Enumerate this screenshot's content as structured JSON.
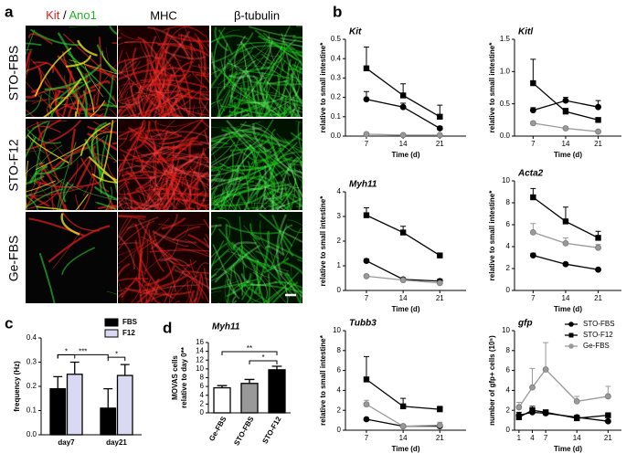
{
  "panel_letters": [
    "a",
    "b",
    "c",
    "d"
  ],
  "images": {
    "column_labels": [
      [
        "Kit",
        "/",
        "Ano1"
      ],
      [
        "MHC"
      ],
      [
        "β-tubulin"
      ]
    ],
    "row_labels": [
      "STO-FBS",
      "STO-F12",
      "Ge-FBS"
    ]
  },
  "chart_data": [
    {
      "type": "line",
      "title": "Kit",
      "ylabel": "relative to small intestine*",
      "xlabel": "Time (d)",
      "x": [
        7,
        14,
        21
      ],
      "xlim": [
        3,
        26
      ],
      "xticks": [
        7,
        14,
        21
      ],
      "ylim": [
        0,
        0.5
      ],
      "yticks": [
        {
          "value": 0,
          "label": "0.0"
        },
        {
          "value": 0.1,
          "label": "0.1"
        },
        {
          "value": 0.2,
          "label": "0.2"
        },
        {
          "value": 0.3,
          "label": "0.3"
        },
        {
          "value": 0.4,
          "label": "0.4"
        },
        {
          "value": 0.5,
          "label": "0.5"
        }
      ],
      "series": [
        {
          "color": "#000000",
          "marker": "circle",
          "values": [
            0.19,
            0.15,
            0.04
          ],
          "errors": [
            0.04,
            0.02,
            0.01
          ]
        },
        {
          "color": "#000000",
          "marker": "square",
          "values": [
            0.35,
            0.21,
            0.1
          ],
          "errors": [
            0.11,
            0.06,
            0.06
          ]
        },
        {
          "color": "#999999",
          "marker": "circle",
          "values": [
            0.01,
            0.005,
            0.005
          ],
          "errors": [
            0.005,
            0.003,
            0.003
          ]
        }
      ]
    },
    {
      "type": "line",
      "title": "Kitl",
      "ylabel": "relative to small intestine*",
      "xlabel": "Time (d)",
      "x": [
        7,
        14,
        21
      ],
      "xlim": [
        3,
        26
      ],
      "xticks": [
        7,
        14,
        21
      ],
      "ylim": [
        0,
        1.5
      ],
      "yticks": [
        {
          "value": 0,
          "label": "0.0"
        },
        {
          "value": 0.5,
          "label": "0.5"
        },
        {
          "value": 1,
          "label": "1.0"
        },
        {
          "value": 1.5,
          "label": "1.5"
        }
      ],
      "series": [
        {
          "color": "#000000",
          "marker": "circle",
          "values": [
            0.4,
            0.55,
            0.45
          ],
          "errors": [
            0.04,
            0.05,
            0.1
          ]
        },
        {
          "color": "#000000",
          "marker": "square",
          "values": [
            0.82,
            0.38,
            0.25
          ],
          "errors": [
            0.37,
            0.05,
            0.02
          ]
        },
        {
          "color": "#999999",
          "marker": "circle",
          "values": [
            0.2,
            0.12,
            0.07
          ],
          "errors": [
            0.02,
            0.02,
            0.01
          ]
        }
      ]
    },
    {
      "type": "line",
      "title": "Myh11",
      "ylabel": "relative to small intestine*",
      "xlabel": "Time (d)",
      "x": [
        7,
        14,
        21
      ],
      "xlim": [
        3,
        26
      ],
      "xticks": [
        7,
        14,
        21
      ],
      "ylim": [
        0,
        4
      ],
      "yticks": [
        0,
        1,
        2,
        3,
        4
      ],
      "series": [
        {
          "color": "#000000",
          "marker": "circle",
          "values": [
            1.2,
            0.45,
            0.38
          ],
          "errors": [
            0.08,
            0.05,
            0.08
          ]
        },
        {
          "color": "#000000",
          "marker": "square",
          "values": [
            3.05,
            2.35,
            1.42
          ],
          "errors": [
            0.3,
            0.25,
            0.07
          ]
        },
        {
          "color": "#999999",
          "marker": "circle",
          "values": [
            0.58,
            0.42,
            0.3
          ],
          "errors": [
            0.04,
            0.03,
            0.05
          ]
        }
      ]
    },
    {
      "type": "line",
      "title": "Acta2",
      "ylabel": "relative to small intestine*",
      "xlabel": "Time (d)",
      "x": [
        7,
        14,
        21
      ],
      "xlim": [
        3,
        26
      ],
      "xticks": [
        7,
        14,
        21
      ],
      "ylim": [
        0,
        10
      ],
      "yticks": [
        0,
        2,
        4,
        6,
        8,
        10
      ],
      "series": [
        {
          "color": "#000000",
          "marker": "circle",
          "values": [
            3.2,
            2.4,
            1.9
          ],
          "errors": [
            0.2,
            0.1,
            0.1
          ]
        },
        {
          "color": "#000000",
          "marker": "square",
          "values": [
            8.5,
            6.3,
            4.8
          ],
          "errors": [
            0.8,
            1.3,
            0.6
          ]
        },
        {
          "color": "#999999",
          "marker": "circle",
          "values": [
            5.3,
            4.3,
            3.9
          ],
          "errors": [
            0.8,
            0.5,
            0.3
          ]
        }
      ]
    },
    {
      "type": "line",
      "title": "Tubb3",
      "ylabel": "relative to small intestine*",
      "xlabel": "Time (d)",
      "x": [
        7,
        14,
        21
      ],
      "xlim": [
        3,
        26
      ],
      "xticks": [
        7,
        14,
        21
      ],
      "ylim": [
        0,
        10
      ],
      "yticks": [
        0,
        2,
        4,
        6,
        8,
        10
      ],
      "series": [
        {
          "color": "#000000",
          "marker": "circle",
          "values": [
            1.1,
            0.4,
            0.4
          ],
          "errors": [
            0.1,
            0.05,
            0.05
          ]
        },
        {
          "color": "#000000",
          "marker": "square",
          "values": [
            5.1,
            2.4,
            2.1
          ],
          "errors": [
            2.3,
            0.8,
            0.3
          ]
        },
        {
          "color": "#999999",
          "marker": "circle",
          "values": [
            2.6,
            0.4,
            0.5
          ],
          "errors": [
            0.4,
            0.1,
            0.3
          ]
        }
      ]
    },
    {
      "type": "line",
      "title": "gfp",
      "ylabel": "number of gfp+ cells (10⁵)",
      "xlabel": "Time (d)",
      "x": [
        1,
        4,
        7,
        14,
        21
      ],
      "xlim": [
        0,
        24
      ],
      "xticks": [
        1,
        4,
        7,
        14,
        21
      ],
      "ylim": [
        0,
        10
      ],
      "yticks": [
        0,
        2,
        4,
        6,
        8,
        10
      ],
      "legend": "upper right",
      "series": [
        {
          "name": "STO-FBS",
          "color": "#000000",
          "marker": "circle",
          "values": [
            1.5,
            1.8,
            1.7,
            1.3,
            0.9
          ],
          "errors": [
            0.3,
            0.3,
            0.2,
            0.2,
            0.1
          ]
        },
        {
          "name": "STO-F12",
          "color": "#000000",
          "marker": "square",
          "values": [
            1.3,
            2.0,
            1.8,
            1.2,
            1.5
          ],
          "errors": [
            0.2,
            0.4,
            0.2,
            0.2,
            0.2
          ]
        },
        {
          "name": "Ge-FBS",
          "color": "#999999",
          "marker": "circle",
          "values": [
            2.3,
            4.3,
            6.1,
            2.9,
            3.4
          ],
          "errors": [
            0.5,
            1.9,
            2.7,
            0.5,
            1.0
          ]
        }
      ]
    },
    {
      "type": "bar",
      "ylabel": "frequency (Hz)",
      "categories": [
        "day7",
        "day21"
      ],
      "ylim": [
        0,
        0.4
      ],
      "yticks": [
        {
          "value": 0,
          "label": "0.0"
        },
        {
          "value": 0.1,
          "label": "0.1"
        },
        {
          "value": 0.2,
          "label": "0.2"
        },
        {
          "value": 0.3,
          "label": "0.3"
        },
        {
          "value": 0.4,
          "label": "0.4"
        }
      ],
      "legend": "upper right",
      "series": [
        {
          "name": "FBS",
          "color": "#000000",
          "values": [
            0.19,
            0.11
          ],
          "errors": [
            0.05,
            0.08
          ]
        },
        {
          "name": "F12",
          "color": "#d9d9f3",
          "values": [
            0.25,
            0.245
          ],
          "errors": [
            0.05,
            0.045
          ]
        }
      ],
      "annotations": [
        "*",
        "*",
        "***"
      ]
    },
    {
      "type": "bar",
      "title": "Myh11",
      "ylabel": [
        "MOVAS cells",
        "relative to day 0**"
      ],
      "categories": [
        "Ge-FBS",
        "STO-FBS",
        "STO-F12"
      ],
      "values": [
        5.7,
        6.7,
        9.8
      ],
      "errors": [
        0.5,
        0.9,
        0.8
      ],
      "colors": [
        "#ffffff",
        "#999999",
        "#000000"
      ],
      "ylim": [
        0,
        16
      ],
      "yticks": [
        0,
        2,
        4,
        6,
        8,
        10,
        12,
        14,
        16
      ],
      "annotations": [
        "**",
        "*"
      ]
    }
  ]
}
